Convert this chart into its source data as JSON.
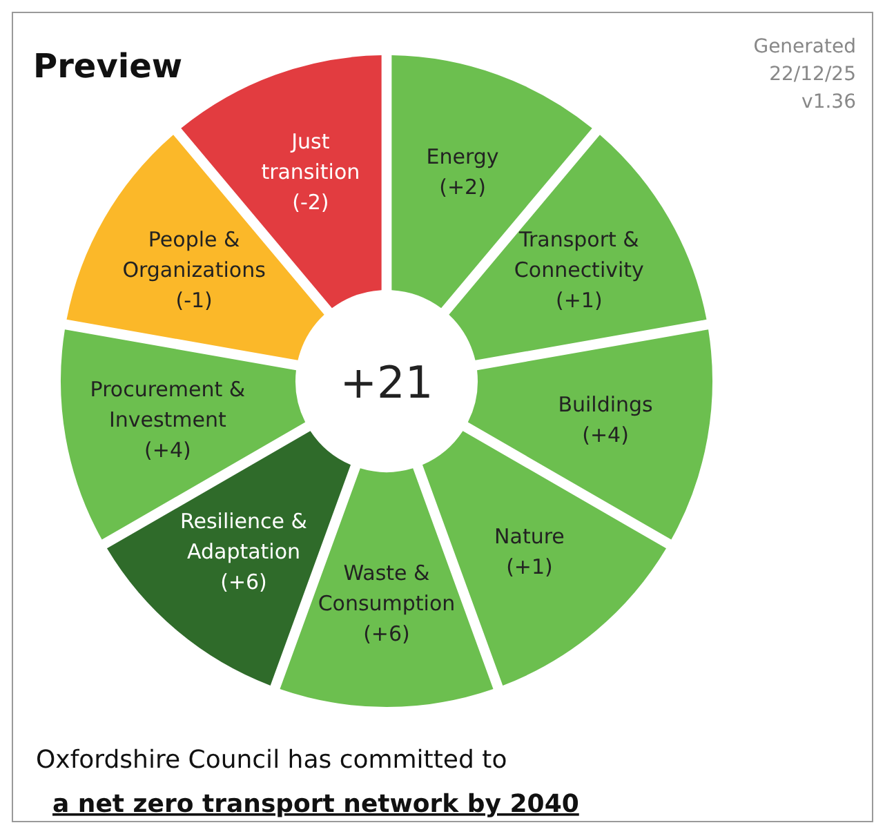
{
  "chart_data": {
    "type": "other",
    "title": "Preview",
    "categories": [
      "Energy",
      "Transport & Connectivity",
      "Buildings",
      "Nature",
      "Waste & Consumption",
      "Resilience & Adaptation",
      "Procurement & Investment",
      "People & Organizations",
      "Just transition"
    ],
    "values": [
      2,
      1,
      4,
      1,
      6,
      6,
      4,
      -1,
      -2
    ],
    "value_labels": [
      "(+2)",
      "(+1)",
      "(+4)",
      "(+1)",
      "(+6)",
      "(+6)",
      "(+4)",
      "(-1)",
      "(-2)"
    ],
    "colors": [
      "#6cbf4f",
      "#6cbf4f",
      "#6cbf4f",
      "#6cbf4f",
      "#6cbf4f",
      "#2f6b2a",
      "#6cbf4f",
      "#fbb829",
      "#e23c40"
    ],
    "annotations": [
      "+21",
      "Generated 22/12/25 v1.36",
      "Oxfordshire Council has committed to",
      "a net zero transport network by 2040"
    ]
  }
}
